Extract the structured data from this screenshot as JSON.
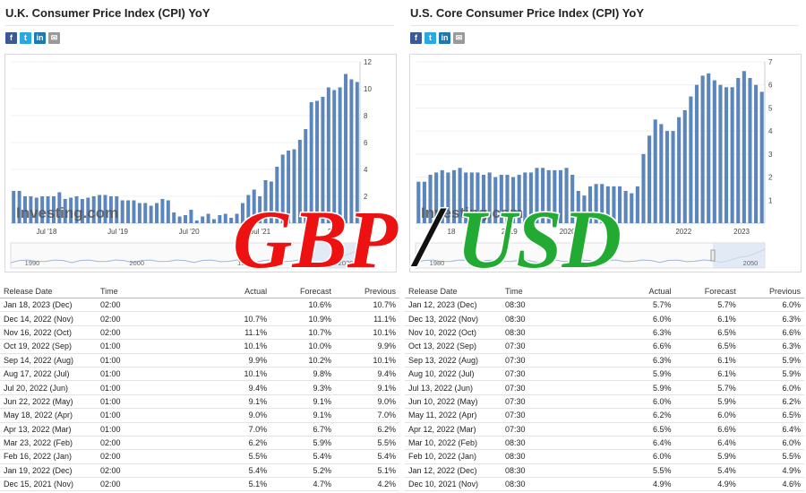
{
  "left": {
    "title": "U.K. Consumer Price Index (CPI) YoY",
    "watermark": "Investing.com",
    "table": {
      "headers": {
        "date": "Release Date",
        "time": "Time",
        "actual": "Actual",
        "forecast": "Forecast",
        "previous": "Previous"
      },
      "rows": [
        {
          "date": "Jan 18, 2023 (Dec)",
          "time": "02:00",
          "actual": "",
          "forecast": "10.6%",
          "previous": "10.7%",
          "color": ""
        },
        {
          "date": "Dec 14, 2022 (Nov)",
          "time": "02:00",
          "actual": "10.7%",
          "forecast": "10.9%",
          "previous": "11.1%",
          "color": "red"
        },
        {
          "date": "Nov 16, 2022 (Oct)",
          "time": "02:00",
          "actual": "11.1%",
          "forecast": "10.7%",
          "previous": "10.1%",
          "color": "green"
        },
        {
          "date": "Oct 19, 2022 (Sep)",
          "time": "01:00",
          "actual": "10.1%",
          "forecast": "10.0%",
          "previous": "9.9%",
          "color": "green"
        },
        {
          "date": "Sep 14, 2022 (Aug)",
          "time": "01:00",
          "actual": "9.9%",
          "forecast": "10.2%",
          "previous": "10.1%",
          "color": "red"
        },
        {
          "date": "Aug 17, 2022 (Jul)",
          "time": "01:00",
          "actual": "10.1%",
          "forecast": "9.8%",
          "previous": "9.4%",
          "color": "green"
        },
        {
          "date": "Jul 20, 2022 (Jun)",
          "time": "01:00",
          "actual": "9.4%",
          "forecast": "9.3%",
          "previous": "9.1%",
          "color": "green"
        },
        {
          "date": "Jun 22, 2022 (May)",
          "time": "01:00",
          "actual": "9.1%",
          "forecast": "9.1%",
          "previous": "9.0%",
          "color": ""
        },
        {
          "date": "May 18, 2022 (Apr)",
          "time": "01:00",
          "actual": "9.0%",
          "forecast": "9.1%",
          "previous": "7.0%",
          "color": "red"
        },
        {
          "date": "Apr 13, 2022 (Mar)",
          "time": "01:00",
          "actual": "7.0%",
          "forecast": "6.7%",
          "previous": "6.2%",
          "color": "green"
        },
        {
          "date": "Mar 23, 2022 (Feb)",
          "time": "02:00",
          "actual": "6.2%",
          "forecast": "5.9%",
          "previous": "5.5%",
          "color": "green"
        },
        {
          "date": "Feb 16, 2022 (Jan)",
          "time": "02:00",
          "actual": "5.5%",
          "forecast": "5.4%",
          "previous": "5.4%",
          "color": "green"
        },
        {
          "date": "Jan 19, 2022 (Dec)",
          "time": "02:00",
          "actual": "5.4%",
          "forecast": "5.2%",
          "previous": "5.1%",
          "color": "green"
        },
        {
          "date": "Dec 15, 2021 (Nov)",
          "time": "02:00",
          "actual": "5.1%",
          "forecast": "4.7%",
          "previous": "4.2%",
          "color": "green"
        }
      ]
    }
  },
  "right": {
    "title": "U.S. Core Consumer Price Index (CPI) YoY",
    "watermark": "Investing.com",
    "table": {
      "headers": {
        "date": "Release Date",
        "time": "Time",
        "actual": "Actual",
        "forecast": "Forecast",
        "previous": "Previous"
      },
      "rows": [
        {
          "date": "Jan 12, 2023 (Dec)",
          "time": "08:30",
          "actual": "5.7%",
          "forecast": "5.7%",
          "previous": "6.0%",
          "color": ""
        },
        {
          "date": "Dec 13, 2022 (Nov)",
          "time": "08:30",
          "actual": "6.0%",
          "forecast": "6.1%",
          "previous": "6.3%",
          "color": "red"
        },
        {
          "date": "Nov 10, 2022 (Oct)",
          "time": "08:30",
          "actual": "6.3%",
          "forecast": "6.5%",
          "previous": "6.6%",
          "color": "red"
        },
        {
          "date": "Oct 13, 2022 (Sep)",
          "time": "07:30",
          "actual": "6.6%",
          "forecast": "6.5%",
          "previous": "6.3%",
          "color": "green"
        },
        {
          "date": "Sep 13, 2022 (Aug)",
          "time": "07:30",
          "actual": "6.3%",
          "forecast": "6.1%",
          "previous": "5.9%",
          "color": "green"
        },
        {
          "date": "Aug 10, 2022 (Jul)",
          "time": "07:30",
          "actual": "5.9%",
          "forecast": "6.1%",
          "previous": "5.9%",
          "color": "red"
        },
        {
          "date": "Jul 13, 2022 (Jun)",
          "time": "07:30",
          "actual": "5.9%",
          "forecast": "5.7%",
          "previous": "6.0%",
          "color": "green"
        },
        {
          "date": "Jun 10, 2022 (May)",
          "time": "07:30",
          "actual": "6.0%",
          "forecast": "5.9%",
          "previous": "6.2%",
          "color": "green"
        },
        {
          "date": "May 11, 2022 (Apr)",
          "time": "07:30",
          "actual": "6.2%",
          "forecast": "6.0%",
          "previous": "6.5%",
          "color": "green"
        },
        {
          "date": "Apr 12, 2022 (Mar)",
          "time": "07:30",
          "actual": "6.5%",
          "forecast": "6.6%",
          "previous": "6.4%",
          "color": "red"
        },
        {
          "date": "Mar 10, 2022 (Feb)",
          "time": "08:30",
          "actual": "6.4%",
          "forecast": "6.4%",
          "previous": "6.0%",
          "color": "green"
        },
        {
          "date": "Feb 10, 2022 (Jan)",
          "time": "08:30",
          "actual": "6.0%",
          "forecast": "5.9%",
          "previous": "5.5%",
          "color": "green"
        },
        {
          "date": "Jan 12, 2022 (Dec)",
          "time": "08:30",
          "actual": "5.5%",
          "forecast": "5.4%",
          "previous": "4.9%",
          "color": "green"
        },
        {
          "date": "Dec 10, 2021 (Nov)",
          "time": "08:30",
          "actual": "4.9%",
          "forecast": "4.9%",
          "previous": "4.6%",
          "color": ""
        }
      ]
    }
  },
  "overlay": {
    "gbp": "GBP",
    "slash": "/",
    "usd": "USD",
    "gbp_color": "#ee1111",
    "usd_color": "#22aa33"
  },
  "colors": {
    "bar": "#5b86bd",
    "bar_faded": "#b9cbe2",
    "navigator_fill": "#d7e4f2"
  },
  "chart_data": [
    {
      "type": "bar",
      "title": "U.K. Consumer Price Index (CPI) YoY",
      "ylim": [
        0,
        12
      ],
      "yticks": [
        "2",
        "4",
        "6",
        "8",
        "10",
        "12"
      ],
      "xticks": [
        "Jul '18",
        "Jul '19",
        "Jul '20",
        "Jul '21",
        "22"
      ],
      "navigator_labels": [
        "1990",
        "2000",
        "10",
        "2020"
      ],
      "values": [
        2.4,
        2.4,
        2.0,
        2.0,
        1.9,
        2.0,
        2.0,
        2.0,
        2.3,
        1.8,
        1.9,
        2.0,
        1.8,
        1.9,
        2.0,
        2.1,
        2.1,
        2.0,
        2.0,
        1.7,
        1.7,
        1.7,
        1.5,
        1.5,
        1.3,
        1.5,
        1.8,
        1.7,
        0.8,
        0.5,
        0.6,
        1.0,
        0.2,
        0.5,
        0.7,
        0.3,
        0.6,
        0.7,
        0.4,
        0.7,
        1.5,
        2.1,
        2.5,
        2.0,
        3.2,
        3.1,
        4.2,
        5.1,
        5.4,
        5.5,
        6.2,
        7.0,
        9.0,
        9.1,
        9.4,
        10.1,
        9.9,
        10.1,
        11.1,
        10.7,
        10.5
      ]
    },
    {
      "type": "bar",
      "title": "U.S. Core Consumer Price Index (CPI) YoY",
      "ylim": [
        0,
        7
      ],
      "yticks": [
        "1",
        "2",
        "3",
        "4",
        "5",
        "6",
        "7"
      ],
      "xticks": [
        "18",
        "2019",
        "2020",
        "",
        "2022",
        "2023"
      ],
      "navigator_labels": [
        "1980",
        "2050"
      ],
      "values": [
        1.8,
        1.8,
        2.1,
        2.2,
        2.3,
        2.2,
        2.3,
        2.4,
        2.2,
        2.2,
        2.2,
        2.1,
        2.2,
        2.0,
        2.1,
        2.1,
        2.0,
        2.1,
        2.2,
        2.2,
        2.4,
        2.4,
        2.3,
        2.3,
        2.3,
        2.4,
        2.1,
        1.4,
        1.2,
        1.6,
        1.7,
        1.7,
        1.6,
        1.6,
        1.6,
        1.4,
        1.3,
        1.6,
        3.0,
        3.8,
        4.5,
        4.3,
        4.0,
        4.0,
        4.6,
        4.9,
        5.5,
        6.0,
        6.4,
        6.5,
        6.2,
        6.0,
        5.9,
        5.9,
        6.3,
        6.6,
        6.3,
        6.0,
        5.7
      ]
    }
  ]
}
